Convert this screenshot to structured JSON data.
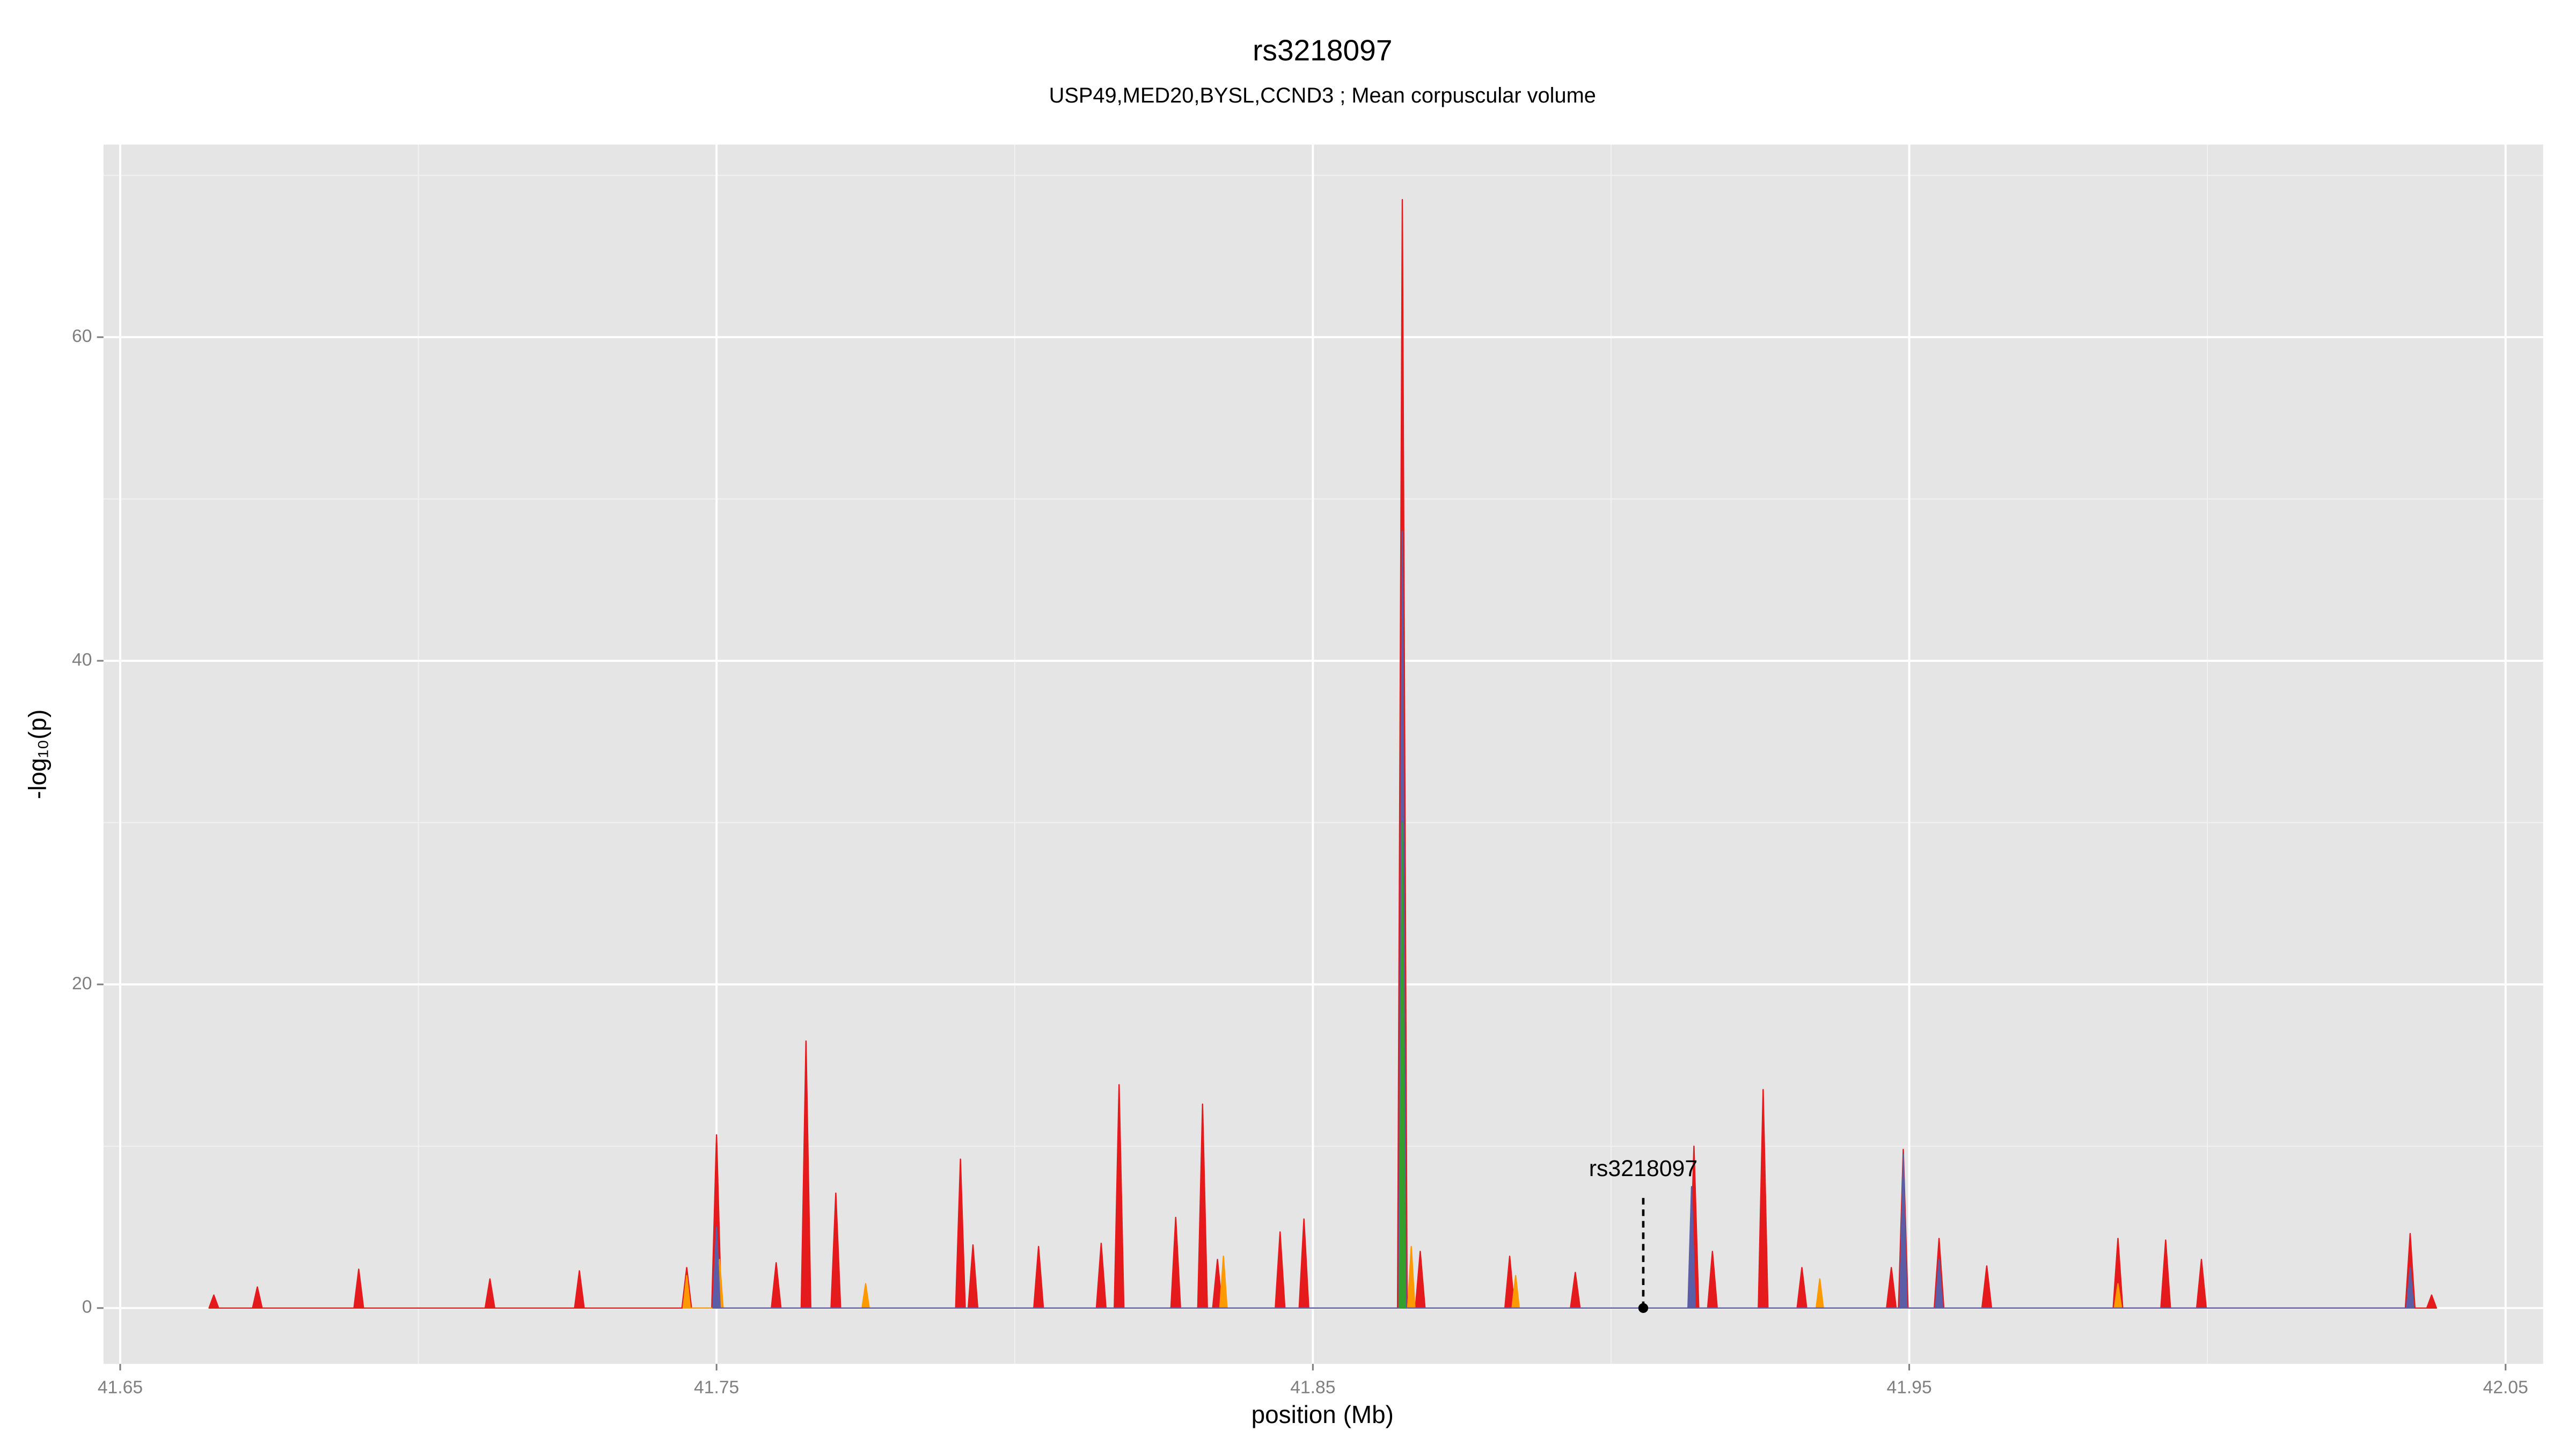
{
  "chart_data": {
    "type": "area",
    "title": "rs3218097",
    "subtitle": "USP49,MED20,BYSL,CCND3 ; Mean corpuscular volume",
    "x_label": "position (Mb)",
    "y_label": "-log₁₀(p)",
    "xlim": [
      41.6472,
      42.0563
    ],
    "ylim": [
      -3.45,
      71.9
    ],
    "xticks": [
      41.65,
      41.75,
      41.85,
      41.95,
      42.05
    ],
    "yticks": [
      0,
      20,
      40,
      60
    ],
    "x_minor_grid": [
      41.7,
      41.8,
      41.9,
      42.0
    ],
    "y_minor_grid": [
      10,
      30,
      50,
      70
    ],
    "grid": true,
    "series": [
      {
        "name": "red",
        "color": "#e41a1c",
        "x": [
          41.6649,
          41.6657,
          41.6665,
          41.6722,
          41.673,
          41.6738,
          41.6892,
          41.69,
          41.6908,
          41.7112,
          41.712,
          41.7128,
          41.7262,
          41.727,
          41.7278,
          41.7442,
          41.745,
          41.7458,
          41.7492,
          41.75,
          41.7508,
          41.7592,
          41.76,
          41.7608,
          41.7642,
          41.765,
          41.7658,
          41.7692,
          41.77,
          41.7708,
          41.7901,
          41.7909,
          41.7917,
          41.7922,
          41.793,
          41.7938,
          41.8032,
          41.804,
          41.8048,
          41.8137,
          41.8145,
          41.8153,
          41.8167,
          41.8175,
          41.8183,
          41.8262,
          41.827,
          41.8278,
          41.8307,
          41.8315,
          41.8323,
          41.8332,
          41.834,
          41.8348,
          41.8437,
          41.8445,
          41.8453,
          41.8477,
          41.8485,
          41.8493,
          41.8642,
          41.865,
          41.8658,
          41.8672,
          41.868,
          41.8688,
          41.8822,
          41.883,
          41.8838,
          41.8932,
          41.894,
          41.8948,
          41.9131,
          41.9139,
          41.9147,
          41.9162,
          41.917,
          41.9178,
          41.9247,
          41.9255,
          41.9263,
          41.9312,
          41.932,
          41.9328,
          41.9462,
          41.947,
          41.9478,
          41.9482,
          41.949,
          41.9498,
          41.9542,
          41.955,
          41.9558,
          41.9622,
          41.963,
          41.9638,
          41.9842,
          41.985,
          41.9858,
          41.9922,
          41.993,
          41.9938,
          41.9982,
          41.999,
          41.9998,
          42.0332,
          42.034,
          42.0348,
          42.0368,
          42.0376,
          42.0384
        ],
        "values": [
          0,
          0.8,
          0,
          0,
          1.3,
          0,
          0,
          2.4,
          0,
          0,
          1.8,
          0,
          0,
          2.3,
          0,
          0,
          2.5,
          0,
          0,
          10.7,
          0,
          0,
          2.8,
          0,
          0,
          16.5,
          0,
          0,
          7.1,
          0,
          0,
          9.2,
          0,
          0,
          3.9,
          0,
          0,
          3.8,
          0,
          0,
          4.0,
          0,
          0,
          13.8,
          0,
          0,
          5.6,
          0,
          0,
          12.6,
          0,
          0,
          3.0,
          0,
          0,
          4.7,
          0,
          0,
          5.5,
          0,
          0,
          68.5,
          0,
          0,
          3.5,
          0,
          0,
          3.2,
          0,
          0,
          2.2,
          0,
          0,
          10,
          0,
          0,
          3.5,
          0,
          0,
          13.5,
          0,
          0,
          2.5,
          0,
          0,
          2.5,
          0,
          0,
          9.8,
          0,
          0,
          4.3,
          0,
          0,
          2.6,
          0,
          0,
          4.3,
          0,
          0,
          4.2,
          0,
          0,
          3.0,
          0,
          0,
          4.6,
          0,
          0,
          0.8,
          0
        ]
      },
      {
        "name": "orange",
        "color": "#ff9900",
        "x": [
          41.7444,
          41.745,
          41.7456,
          41.7499,
          41.7505,
          41.7511,
          41.7744,
          41.775,
          41.7756,
          41.8344,
          41.835,
          41.8356,
          41.8659,
          41.8665,
          41.8671,
          41.8834,
          41.884,
          41.8846,
          41.9344,
          41.935,
          41.9356,
          41.9844,
          41.985,
          41.9856
        ],
        "values": [
          0,
          2.0,
          0,
          0,
          3.0,
          0,
          0,
          1.5,
          0,
          0,
          3.2,
          0,
          0,
          3.8,
          0,
          0,
          2.0,
          0,
          0,
          1.8,
          0,
          0,
          1.5,
          0
        ]
      },
      {
        "name": "blue",
        "color": "#5b5ea6",
        "x": [
          41.7494,
          41.75,
          41.7506,
          41.8644,
          41.865,
          41.8656,
          41.9129,
          41.9135,
          41.9141,
          41.9484,
          41.949,
          41.9496,
          41.9544,
          41.955,
          41.9556,
          42.0334,
          42.034,
          42.0346
        ],
        "values": [
          0,
          5.0,
          0,
          0,
          48,
          0,
          0,
          7.5,
          0,
          0,
          9.5,
          0,
          0,
          3.0,
          0,
          0,
          2.5,
          0
        ]
      },
      {
        "name": "green",
        "color": "#33a02c",
        "x": [
          41.8645,
          41.865,
          41.8655
        ],
        "values": [
          0,
          30,
          0
        ]
      }
    ],
    "annotation": {
      "text": "rs3218097",
      "x": 41.9054,
      "y": 0
    }
  }
}
